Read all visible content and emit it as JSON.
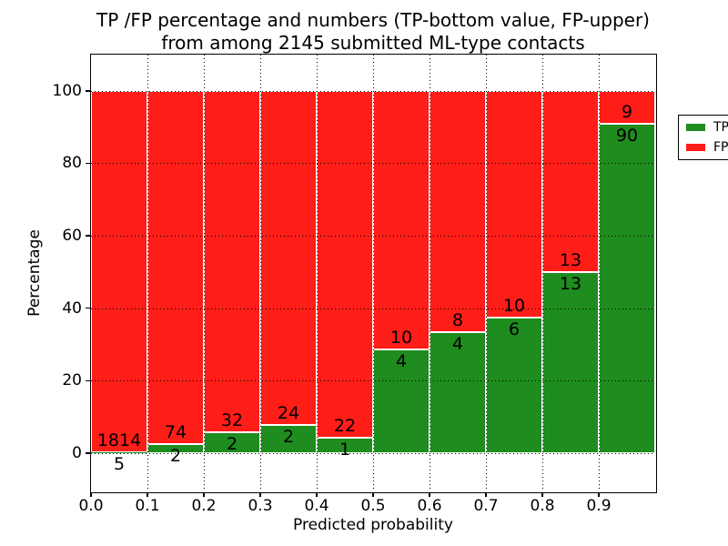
{
  "chart_data": {
    "type": "bar",
    "stacked": true,
    "normalized_to_percent": true,
    "title_line1": "TP /FP percentage and numbers (TP-bottom value, FP-upper)",
    "title_line2": "from among 2145 submitted ML-type contacts",
    "xlabel": "Predicted probability",
    "ylabel": "Percentage",
    "xlim": [
      0.0,
      1.0
    ],
    "ylim": [
      -10.55,
      110.0
    ],
    "xticks": [
      "0.0",
      "0.1",
      "0.2",
      "0.3",
      "0.4",
      "0.5",
      "0.6",
      "0.7",
      "0.8",
      "0.9"
    ],
    "yticks": [
      "0",
      "20",
      "40",
      "60",
      "80",
      "100"
    ],
    "grid": {
      "style": "dotted",
      "color": "#000000",
      "drawn_above_bars": true
    },
    "bar_edge_color": "#ffffff",
    "categories": [
      "0.0-0.1",
      "0.1-0.2",
      "0.2-0.3",
      "0.3-0.4",
      "0.4-0.5",
      "0.5-0.6",
      "0.6-0.7",
      "0.7-0.8",
      "0.8-0.9",
      "0.9-1.0"
    ],
    "series": [
      {
        "name": "TP",
        "color": "#1e8c1e",
        "values": [
          5,
          2,
          2,
          2,
          1,
          4,
          4,
          6,
          13,
          90
        ]
      },
      {
        "name": "FP",
        "color": "#ff1d18",
        "values": [
          1814,
          74,
          32,
          24,
          22,
          10,
          8,
          10,
          13,
          9
        ]
      }
    ],
    "legend": {
      "position": "upper right",
      "entries": [
        "TP",
        "FP"
      ]
    }
  }
}
